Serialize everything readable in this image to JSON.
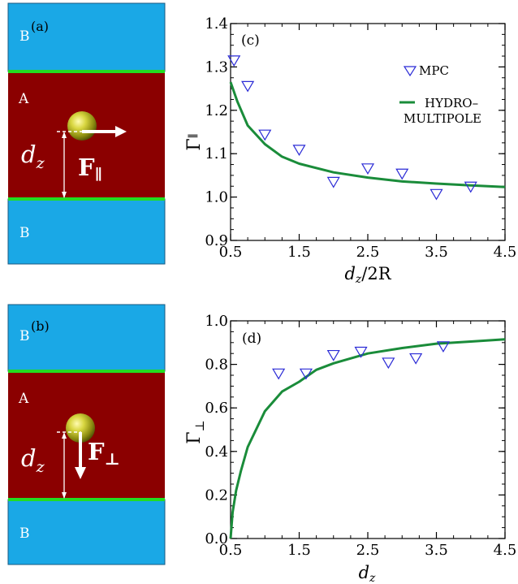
{
  "schematic_a": {
    "panel_label": "(a)",
    "top_region": "B",
    "middle_region": "A",
    "bottom_region": "B",
    "distance_label": "d",
    "distance_sub": "z",
    "force_label": "F",
    "force_sub": "∥",
    "force_direction": "parallel"
  },
  "schematic_b": {
    "panel_label": "(b)",
    "top_region": "B",
    "middle_region": "A",
    "bottom_region": "B",
    "distance_label": "d",
    "distance_sub": "z",
    "force_label": "F",
    "force_sub": "⊥",
    "force_direction": "perpendicular"
  },
  "colors": {
    "region_b": "#1aa8e6",
    "region_a": "#8b0000",
    "interface": "#22dd22",
    "curve": "#1a8c3a",
    "marker": "#2b2bd6"
  },
  "legend": {
    "mpc_label": "MPC",
    "hydro_line1": "HYDRO–",
    "hydro_line2": "MULTIPOLE"
  },
  "chart_data": [
    {
      "type": "line",
      "panel_label": "(c)",
      "ylabel": "Γ",
      "ylabel_sub": "∥",
      "xlabel": "d",
      "xlabel_sub": "z",
      "xlabel_suffix": "/2R",
      "xlim": [
        0.5,
        4.5
      ],
      "ylim": [
        0.9,
        1.4
      ],
      "xticks": [
        "0.5",
        "1.5",
        "2.5",
        "3.5",
        "4.5"
      ],
      "yticks": [
        "0.9",
        "1.0",
        "1.1",
        "1.2",
        "1.3",
        "1.4"
      ],
      "series": [
        {
          "name": "MPC",
          "kind": "scatter",
          "x": [
            0.55,
            0.75,
            1.0,
            1.5,
            2.0,
            2.5,
            3.0,
            3.5,
            4.0
          ],
          "y": [
            1.316,
            1.257,
            1.145,
            1.11,
            1.036,
            1.067,
            1.055,
            1.008,
            1.025
          ]
        },
        {
          "name": "HYDRO–MULTIPOLE",
          "kind": "line",
          "x": [
            0.5,
            0.6,
            0.75,
            1.0,
            1.25,
            1.5,
            2.0,
            2.5,
            3.0,
            3.5,
            4.0,
            4.5
          ],
          "y": [
            1.265,
            1.22,
            1.165,
            1.122,
            1.093,
            1.077,
            1.057,
            1.045,
            1.036,
            1.031,
            1.027,
            1.023
          ]
        }
      ]
    },
    {
      "type": "line",
      "panel_label": "(d)",
      "ylabel": "Γ",
      "ylabel_sub": "⊥",
      "xlabel": "d",
      "xlabel_sub": "z",
      "xlabel_suffix": "",
      "xlim": [
        0.5,
        4.5
      ],
      "ylim": [
        0.0,
        1.0
      ],
      "xticks": [
        "0.5",
        "1.5",
        "2.5",
        "3.5",
        "4.5"
      ],
      "yticks": [
        "0.0",
        "0.2",
        "0.4",
        "0.6",
        "0.8",
        "1.0"
      ],
      "series": [
        {
          "name": "MPC",
          "kind": "scatter",
          "x": [
            1.2,
            1.6,
            2.0,
            2.4,
            2.8,
            3.2,
            3.6
          ],
          "y": [
            0.76,
            0.76,
            0.845,
            0.86,
            0.81,
            0.83,
            0.885
          ]
        },
        {
          "name": "HYDRO–MULTIPOLE",
          "kind": "line",
          "x": [
            0.5,
            0.53,
            0.58,
            0.65,
            0.75,
            1.0,
            1.25,
            1.5,
            1.75,
            2.0,
            2.5,
            3.0,
            3.5,
            4.0,
            4.5
          ],
          "y": [
            0.0,
            0.12,
            0.22,
            0.31,
            0.42,
            0.585,
            0.675,
            0.72,
            0.775,
            0.805,
            0.85,
            0.875,
            0.895,
            0.905,
            0.915
          ]
        }
      ]
    }
  ]
}
